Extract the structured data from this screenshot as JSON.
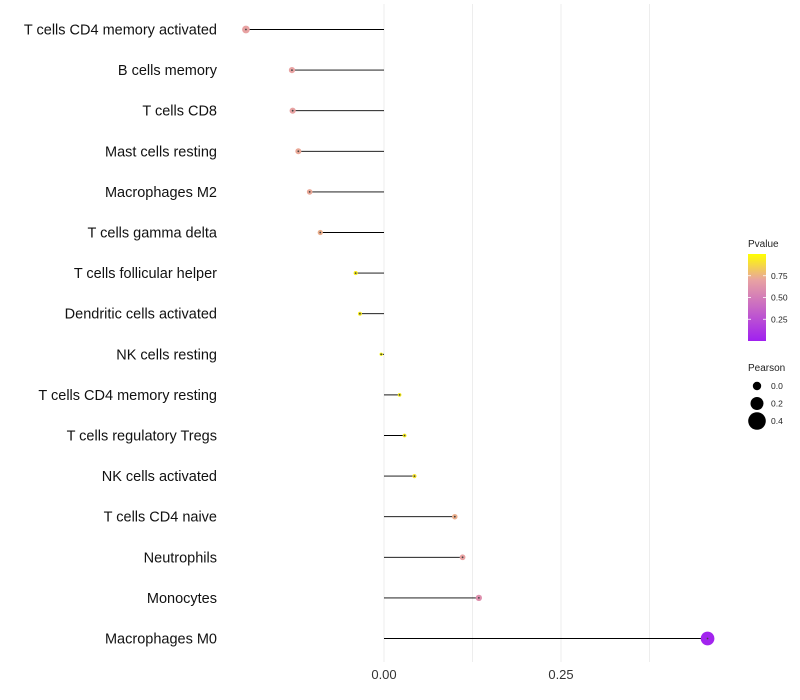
{
  "chart_data": {
    "type": "lollipop",
    "categories": [
      "T cells CD4 memory activated",
      "B cells memory",
      "T cells CD8",
      "Mast cells resting",
      "Macrophages M2",
      "T cells gamma delta",
      "T cells follicular helper",
      "Dendritic cells activated",
      "NK cells resting",
      "T cells CD4 memory resting",
      "T cells regulatory  Tregs ",
      "NK cells activated",
      "T cells CD4 naive",
      "Neutrophils",
      "Monocytes",
      "Macrophages M0"
    ],
    "pearson": [
      -0.195,
      -0.13,
      -0.129,
      -0.121,
      -0.105,
      -0.09,
      -0.04,
      -0.034,
      -0.004,
      0.022,
      0.029,
      0.043,
      0.1,
      0.111,
      0.134,
      0.457
    ],
    "pvalue": [
      0.7,
      0.7,
      0.7,
      0.72,
      0.72,
      0.74,
      0.95,
      0.95,
      0.99,
      0.95,
      0.95,
      0.92,
      0.74,
      0.7,
      0.6,
      0.02
    ],
    "xlim": [
      -0.25,
      0.5
    ],
    "x_ticks": [
      0.0,
      0.25
    ],
    "x_tick_labels": [
      "0.00",
      "0.25"
    ],
    "x_minor_grid": [
      0.125,
      0.375
    ],
    "xlabel": "",
    "ylabel": "",
    "legend": {
      "color_title": "Pvalue",
      "color_ticks": [
        0.25,
        0.5,
        0.75
      ],
      "color_tick_labels": [
        "0.25",
        "0.50",
        "0.75"
      ],
      "color_low": "#a020f0",
      "color_mid": "#e8a2a2",
      "color_high": "#ffff00",
      "size_title": "Pearson",
      "size_values": [
        0.0,
        0.2,
        0.4
      ],
      "size_labels": [
        "0.0",
        "0.2",
        "0.4"
      ],
      "placement": "right"
    },
    "colors": {
      "segment": "#000000",
      "grid": "#ebebeb",
      "point_center": "#444444"
    }
  }
}
